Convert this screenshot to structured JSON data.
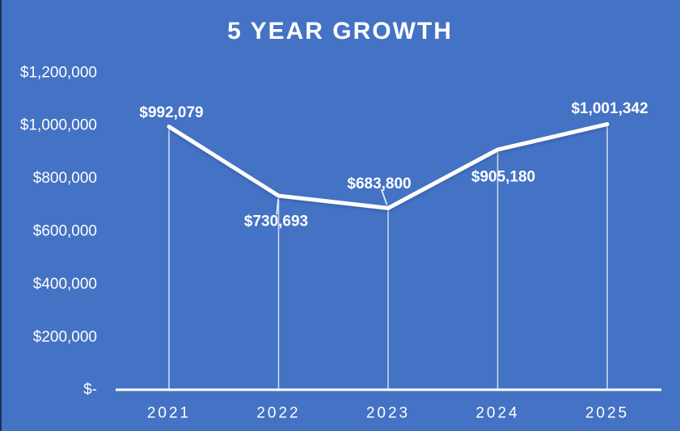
{
  "window": {
    "background": "#4472C4",
    "left_edge_color": "#1B3158"
  },
  "chart_data": {
    "type": "line",
    "title": "5 YEAR GROWTH",
    "categories": [
      "2021",
      "2022",
      "2023",
      "2024",
      "2025"
    ],
    "values": [
      992079,
      730693,
      683800,
      905180,
      1001342
    ],
    "data_labels": [
      "$992,079",
      "$730,693",
      "$683,800",
      "$905,180",
      "$1,001,342"
    ],
    "label_positions": [
      "above",
      "below",
      "above-left",
      "below-right",
      "above"
    ],
    "label_leader_indices": [
      1,
      2
    ],
    "y_ticks": [
      {
        "label": "$1,200,000",
        "value": 1200000
      },
      {
        "label": "$1,000,000",
        "value": 1000000
      },
      {
        "label": "$800,000",
        "value": 800000
      },
      {
        "label": "$600,000",
        "value": 600000
      },
      {
        "label": "$400,000",
        "value": 400000
      },
      {
        "label": "$200,000",
        "value": 200000
      },
      {
        "label": "$-",
        "value": 0
      }
    ],
    "ylim": [
      0,
      1200000
    ],
    "xlabel": "",
    "ylabel": "",
    "grid": false,
    "legend": "none",
    "drop_lines": true,
    "colors": {
      "line": "#FFFFFF",
      "text": "#FFFFFF",
      "axis": "#FFFFFF",
      "drop_line": "rgba(255,255,255,0.72)",
      "leader_line": "rgba(255,255,255,0.85)",
      "line_shadow": "#1F3864"
    }
  }
}
